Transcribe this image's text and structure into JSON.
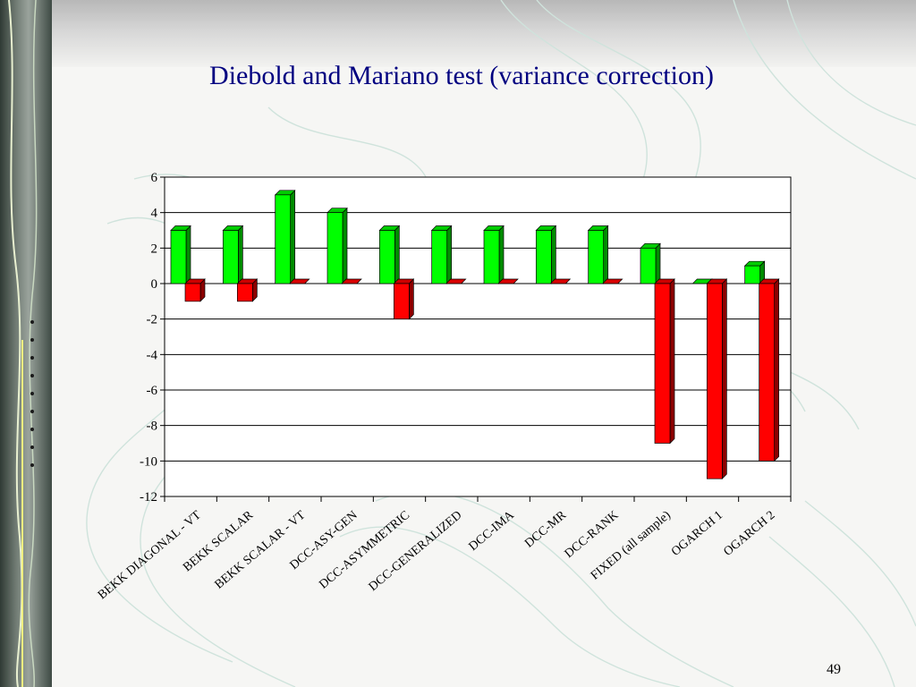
{
  "slide": {
    "title": "Diebold and Mariano test (variance correction)",
    "page_number": "49"
  },
  "colors": {
    "positive_bar": "#00ff00",
    "negative_bar": "#ff0000",
    "title_text": "#000080",
    "plot_background": "#ffffff",
    "gridline": "#000000"
  },
  "chart_data": {
    "type": "bar",
    "title": "",
    "xlabel": "",
    "ylabel": "",
    "ylim": [
      -12,
      6
    ],
    "yticks": [
      "6",
      "4",
      "2",
      "0",
      "-2",
      "-4",
      "-6",
      "-8",
      "-10",
      "-12"
    ],
    "grid": true,
    "legend": "none",
    "style": "3d clustered columns",
    "categories": [
      "BEKK DIAGONAL - VT",
      "BEKK SCALAR",
      "BEKK SCALAR - VT",
      "DCC-ASY-GEN",
      "DCC-ASYMMETRIC",
      "DCC-GENERALIZED",
      "DCC-IMA",
      "DCC-MR",
      "DCC-RANK",
      "FIXED (all sample)",
      "OGARCH 1",
      "OGARCH 2"
    ],
    "series": [
      {
        "values": [
          3,
          3,
          5,
          4,
          3,
          3,
          3,
          3,
          3,
          2,
          0,
          1
        ]
      },
      {
        "values": [
          -1,
          -1,
          0,
          0,
          -2,
          0,
          0,
          0,
          0,
          -9,
          -11,
          -10
        ]
      }
    ]
  }
}
